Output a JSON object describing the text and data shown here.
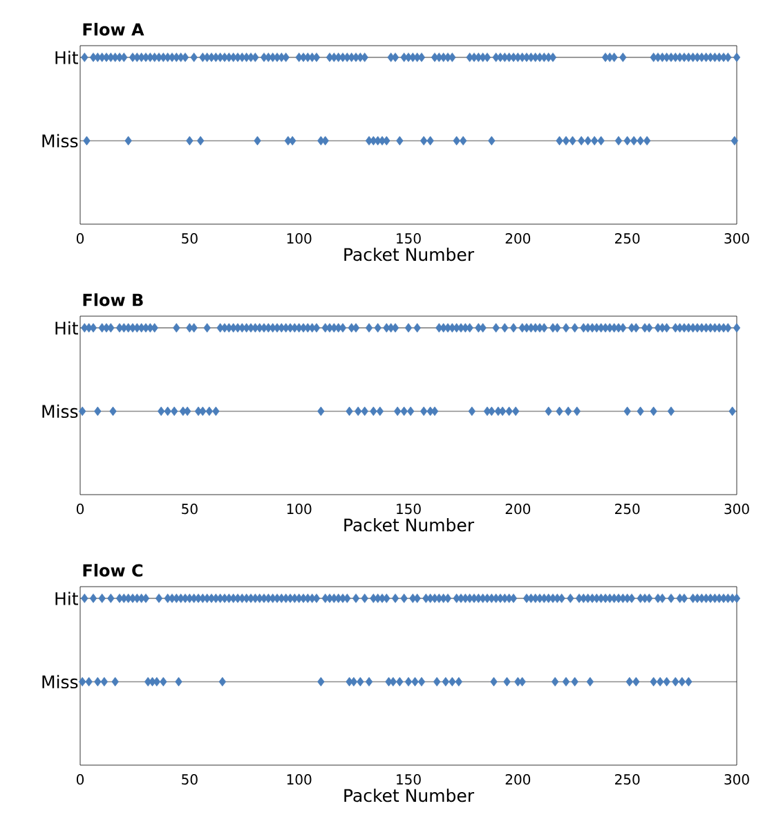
{
  "chart_data": [
    {
      "type": "scatter",
      "title": "Flow A",
      "xlabel": "Packet Number",
      "orientation": "horizontal",
      "categories": [
        "Hit",
        "Miss"
      ],
      "xlim": [
        0,
        300
      ],
      "xticks": [
        0,
        50,
        100,
        150,
        200,
        250,
        300
      ],
      "grid": "y",
      "marker": "diamond",
      "series": [
        {
          "color": "#4a7ebb",
          "values": [
            2,
            6,
            8,
            10,
            12,
            14,
            16,
            18,
            20,
            24,
            26,
            28,
            30,
            32,
            34,
            36,
            38,
            40,
            42,
            44,
            46,
            48,
            52,
            56,
            58,
            60,
            62,
            64,
            66,
            68,
            70,
            72,
            74,
            76,
            78,
            80,
            84,
            86,
            88,
            90,
            92,
            94,
            100,
            102,
            104,
            106,
            108,
            114,
            116,
            118,
            120,
            122,
            124,
            126,
            128,
            130,
            142,
            144,
            148,
            150,
            152,
            154,
            156,
            162,
            164,
            166,
            168,
            170,
            178,
            180,
            182,
            184,
            186,
            190,
            192,
            194,
            196,
            198,
            200,
            202,
            204,
            206,
            208,
            210,
            212,
            214,
            216,
            240,
            242,
            244,
            248,
            262,
            264,
            266,
            268,
            270,
            272,
            274,
            276,
            278,
            280,
            282,
            284,
            286,
            288,
            290,
            292,
            294,
            296,
            300
          ],
          "x": [
            "Hit",
            "Hit",
            "Hit",
            "Hit",
            "Hit",
            "Hit",
            "Hit",
            "Hit",
            "Hit",
            "Hit",
            "Hit",
            "Hit",
            "Hit",
            "Hit",
            "Hit",
            "Hit",
            "Hit",
            "Hit",
            "Hit",
            "Hit",
            "Hit",
            "Hit",
            "Hit",
            "Hit",
            "Hit",
            "Hit",
            "Hit",
            "Hit",
            "Hit",
            "Hit",
            "Hit",
            "Hit",
            "Hit",
            "Hit",
            "Hit",
            "Hit",
            "Hit",
            "Hit",
            "Hit",
            "Hit",
            "Hit",
            "Hit",
            "Hit",
            "Hit",
            "Hit",
            "Hit",
            "Hit",
            "Hit",
            "Hit",
            "Hit",
            "Hit",
            "Hit",
            "Hit",
            "Hit",
            "Hit",
            "Hit",
            "Hit",
            "Hit",
            "Hit",
            "Hit",
            "Hit",
            "Hit",
            "Hit",
            "Hit",
            "Hit",
            "Hit",
            "Hit",
            "Hit",
            "Hit",
            "Hit",
            "Hit",
            "Hit",
            "Hit",
            "Hit",
            "Hit",
            "Hit",
            "Hit",
            "Hit",
            "Hit",
            "Hit",
            "Hit",
            "Hit",
            "Hit",
            "Hit",
            "Hit",
            "Hit",
            "Hit",
            "Hit",
            "Hit",
            "Hit",
            "Hit",
            "Hit",
            "Hit",
            "Hit",
            "Hit",
            "Hit",
            "Hit",
            "Hit",
            "Hit",
            "Hit",
            "Hit",
            "Hit",
            "Hit",
            "Hit",
            "Hit",
            "Hit",
            "Hit",
            "Hit",
            "Hit",
            "Hit"
          ]
        },
        {
          "color": "#4a7ebb",
          "values": [
            3,
            22,
            50,
            55,
            81,
            95,
            97,
            110,
            112,
            132,
            134,
            136,
            138,
            140,
            146,
            157,
            160,
            172,
            175,
            188,
            219,
            222,
            225,
            229,
            232,
            235,
            238,
            246,
            250,
            253,
            256,
            259,
            299
          ],
          "x": [
            "Miss",
            "Miss",
            "Miss",
            "Miss",
            "Miss",
            "Miss",
            "Miss",
            "Miss",
            "Miss",
            "Miss",
            "Miss",
            "Miss",
            "Miss",
            "Miss",
            "Miss",
            "Miss",
            "Miss",
            "Miss",
            "Miss",
            "Miss",
            "Miss",
            "Miss",
            "Miss",
            "Miss",
            "Miss",
            "Miss",
            "Miss",
            "Miss",
            "Miss",
            "Miss",
            "Miss",
            "Miss",
            "Miss"
          ]
        }
      ]
    },
    {
      "type": "scatter",
      "title": "Flow B",
      "xlabel": "Packet Number",
      "orientation": "horizontal",
      "categories": [
        "Hit",
        "Miss"
      ],
      "xlim": [
        0,
        300
      ],
      "xticks": [
        0,
        50,
        100,
        150,
        200,
        250,
        300
      ],
      "grid": "y",
      "marker": "diamond",
      "series": [
        {
          "color": "#4a7ebb",
          "values": [
            2,
            4,
            6,
            10,
            12,
            14,
            18,
            20,
            22,
            24,
            26,
            28,
            30,
            32,
            34,
            44,
            50,
            52,
            58,
            64,
            66,
            68,
            70,
            72,
            74,
            76,
            78,
            80,
            82,
            84,
            86,
            88,
            90,
            92,
            94,
            96,
            98,
            100,
            102,
            104,
            106,
            108,
            112,
            114,
            116,
            118,
            120,
            124,
            126,
            132,
            136,
            140,
            142,
            144,
            150,
            154,
            164,
            166,
            168,
            170,
            172,
            174,
            176,
            178,
            182,
            184,
            190,
            194,
            198,
            202,
            204,
            206,
            208,
            210,
            212,
            216,
            218,
            222,
            226,
            230,
            232,
            234,
            236,
            238,
            240,
            242,
            244,
            246,
            248,
            252,
            254,
            258,
            260,
            264,
            266,
            268,
            272,
            274,
            276,
            278,
            280,
            282,
            284,
            286,
            288,
            290,
            292,
            294,
            296,
            300
          ],
          "x": [
            "Hit",
            "Hit",
            "Hit",
            "Hit",
            "Hit",
            "Hit",
            "Hit",
            "Hit",
            "Hit",
            "Hit",
            "Hit",
            "Hit",
            "Hit",
            "Hit",
            "Hit",
            "Hit",
            "Hit",
            "Hit",
            "Hit",
            "Hit",
            "Hit",
            "Hit",
            "Hit",
            "Hit",
            "Hit",
            "Hit",
            "Hit",
            "Hit",
            "Hit",
            "Hit",
            "Hit",
            "Hit",
            "Hit",
            "Hit",
            "Hit",
            "Hit",
            "Hit",
            "Hit",
            "Hit",
            "Hit",
            "Hit",
            "Hit",
            "Hit",
            "Hit",
            "Hit",
            "Hit",
            "Hit",
            "Hit",
            "Hit",
            "Hit",
            "Hit",
            "Hit",
            "Hit",
            "Hit",
            "Hit",
            "Hit",
            "Hit",
            "Hit",
            "Hit",
            "Hit",
            "Hit",
            "Hit",
            "Hit",
            "Hit",
            "Hit",
            "Hit",
            "Hit",
            "Hit",
            "Hit",
            "Hit",
            "Hit",
            "Hit",
            "Hit",
            "Hit",
            "Hit",
            "Hit",
            "Hit",
            "Hit",
            "Hit",
            "Hit",
            "Hit",
            "Hit",
            "Hit",
            "Hit",
            "Hit",
            "Hit",
            "Hit",
            "Hit",
            "Hit",
            "Hit",
            "Hit",
            "Hit",
            "Hit",
            "Hit",
            "Hit",
            "Hit",
            "Hit",
            "Hit",
            "Hit",
            "Hit",
            "Hit",
            "Hit",
            "Hit",
            "Hit",
            "Hit",
            "Hit",
            "Hit",
            "Hit",
            "Hit",
            "Hit"
          ]
        },
        {
          "color": "#4a7ebb",
          "values": [
            1,
            8,
            15,
            37,
            40,
            43,
            47,
            49,
            54,
            56,
            59,
            62,
            110,
            123,
            127,
            130,
            134,
            137,
            145,
            148,
            151,
            157,
            160,
            162,
            179,
            186,
            188,
            191,
            193,
            196,
            199,
            214,
            219,
            223,
            227,
            250,
            256,
            262,
            270,
            298
          ],
          "x": [
            "Miss",
            "Miss",
            "Miss",
            "Miss",
            "Miss",
            "Miss",
            "Miss",
            "Miss",
            "Miss",
            "Miss",
            "Miss",
            "Miss",
            "Miss",
            "Miss",
            "Miss",
            "Miss",
            "Miss",
            "Miss",
            "Miss",
            "Miss",
            "Miss",
            "Miss",
            "Miss",
            "Miss",
            "Miss",
            "Miss",
            "Miss",
            "Miss",
            "Miss",
            "Miss",
            "Miss",
            "Miss",
            "Miss",
            "Miss",
            "Miss",
            "Miss",
            "Miss",
            "Miss",
            "Miss",
            "Miss"
          ]
        }
      ]
    },
    {
      "type": "scatter",
      "title": "Flow C",
      "xlabel": "Packet Number",
      "orientation": "horizontal",
      "categories": [
        "Hit",
        "Miss"
      ],
      "xlim": [
        0,
        300
      ],
      "xticks": [
        0,
        50,
        100,
        150,
        200,
        250,
        300
      ],
      "grid": "y",
      "marker": "diamond",
      "series": [
        {
          "color": "#4a7ebb",
          "values": [
            2,
            6,
            10,
            14,
            18,
            20,
            22,
            24,
            26,
            28,
            30,
            36,
            40,
            42,
            44,
            46,
            48,
            50,
            52,
            54,
            56,
            58,
            60,
            62,
            64,
            66,
            68,
            70,
            72,
            74,
            76,
            78,
            80,
            82,
            84,
            86,
            88,
            90,
            92,
            94,
            96,
            98,
            100,
            102,
            104,
            106,
            108,
            112,
            114,
            116,
            118,
            120,
            122,
            126,
            130,
            134,
            136,
            138,
            140,
            144,
            148,
            152,
            154,
            158,
            160,
            162,
            164,
            166,
            168,
            172,
            174,
            176,
            178,
            180,
            182,
            184,
            186,
            188,
            190,
            192,
            194,
            196,
            198,
            204,
            206,
            208,
            210,
            212,
            214,
            216,
            218,
            220,
            224,
            228,
            230,
            232,
            234,
            236,
            238,
            240,
            242,
            244,
            246,
            248,
            250,
            252,
            256,
            258,
            260,
            264,
            266,
            270,
            274,
            276,
            280,
            282,
            284,
            286,
            288,
            290,
            292,
            294,
            296,
            298,
            300
          ],
          "x": [
            "Hit",
            "Hit",
            "Hit",
            "Hit",
            "Hit",
            "Hit",
            "Hit",
            "Hit",
            "Hit",
            "Hit",
            "Hit",
            "Hit",
            "Hit",
            "Hit",
            "Hit",
            "Hit",
            "Hit",
            "Hit",
            "Hit",
            "Hit",
            "Hit",
            "Hit",
            "Hit",
            "Hit",
            "Hit",
            "Hit",
            "Hit",
            "Hit",
            "Hit",
            "Hit",
            "Hit",
            "Hit",
            "Hit",
            "Hit",
            "Hit",
            "Hit",
            "Hit",
            "Hit",
            "Hit",
            "Hit",
            "Hit",
            "Hit",
            "Hit",
            "Hit",
            "Hit",
            "Hit",
            "Hit",
            "Hit",
            "Hit",
            "Hit",
            "Hit",
            "Hit",
            "Hit",
            "Hit",
            "Hit",
            "Hit",
            "Hit",
            "Hit",
            "Hit",
            "Hit",
            "Hit",
            "Hit",
            "Hit",
            "Hit",
            "Hit",
            "Hit",
            "Hit",
            "Hit",
            "Hit",
            "Hit",
            "Hit",
            "Hit",
            "Hit",
            "Hit",
            "Hit",
            "Hit",
            "Hit",
            "Hit",
            "Hit",
            "Hit",
            "Hit",
            "Hit",
            "Hit",
            "Hit",
            "Hit",
            "Hit",
            "Hit",
            "Hit",
            "Hit",
            "Hit",
            "Hit",
            "Hit",
            "Hit",
            "Hit",
            "Hit",
            "Hit",
            "Hit",
            "Hit",
            "Hit",
            "Hit",
            "Hit",
            "Hit",
            "Hit",
            "Hit",
            "Hit",
            "Hit",
            "Hit",
            "Hit",
            "Hit",
            "Hit",
            "Hit",
            "Hit",
            "Hit",
            "Hit",
            "Hit",
            "Hit",
            "Hit",
            "Hit",
            "Hit",
            "Hit",
            "Hit",
            "Hit",
            "Hit",
            "Hit",
            "Hit"
          ]
        },
        {
          "color": "#4a7ebb",
          "values": [
            1,
            4,
            8,
            11,
            16,
            31,
            33,
            35,
            38,
            45,
            65,
            110,
            123,
            125,
            128,
            132,
            141,
            143,
            146,
            150,
            153,
            156,
            163,
            167,
            170,
            173,
            189,
            195,
            200,
            202,
            217,
            222,
            226,
            233,
            251,
            254,
            262,
            265,
            268,
            272,
            275,
            278
          ],
          "x": [
            "Miss",
            "Miss",
            "Miss",
            "Miss",
            "Miss",
            "Miss",
            "Miss",
            "Miss",
            "Miss",
            "Miss",
            "Miss",
            "Miss",
            "Miss",
            "Miss",
            "Miss",
            "Miss",
            "Miss",
            "Miss",
            "Miss",
            "Miss",
            "Miss",
            "Miss",
            "Miss",
            "Miss",
            "Miss",
            "Miss",
            "Miss",
            "Miss",
            "Miss",
            "Miss",
            "Miss",
            "Miss",
            "Miss",
            "Miss",
            "Miss",
            "Miss",
            "Miss",
            "Miss",
            "Miss",
            "Miss",
            "Miss",
            "Miss"
          ]
        }
      ]
    }
  ]
}
